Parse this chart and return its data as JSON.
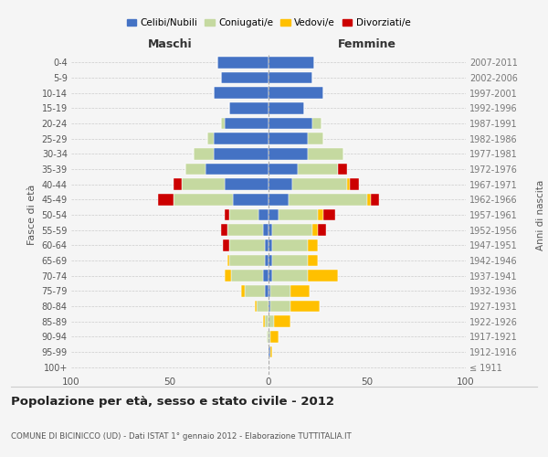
{
  "age_groups": [
    "100+",
    "95-99",
    "90-94",
    "85-89",
    "80-84",
    "75-79",
    "70-74",
    "65-69",
    "60-64",
    "55-59",
    "50-54",
    "45-49",
    "40-44",
    "35-39",
    "30-34",
    "25-29",
    "20-24",
    "15-19",
    "10-14",
    "5-9",
    "0-4"
  ],
  "birth_years": [
    "≤ 1911",
    "1912-1916",
    "1917-1921",
    "1922-1926",
    "1927-1931",
    "1932-1936",
    "1937-1941",
    "1942-1946",
    "1947-1951",
    "1952-1956",
    "1957-1961",
    "1962-1966",
    "1967-1971",
    "1972-1976",
    "1977-1981",
    "1982-1986",
    "1987-1991",
    "1992-1996",
    "1997-2001",
    "2002-2006",
    "2007-2011"
  ],
  "maschi": {
    "celibi": [
      0,
      0,
      0,
      0,
      0,
      2,
      3,
      2,
      2,
      3,
      5,
      18,
      22,
      32,
      28,
      28,
      22,
      20,
      28,
      24,
      26
    ],
    "coniugati": [
      0,
      0,
      1,
      2,
      6,
      10,
      16,
      18,
      18,
      18,
      15,
      30,
      22,
      10,
      10,
      3,
      2,
      0,
      0,
      0,
      0
    ],
    "vedovi": [
      0,
      0,
      0,
      1,
      1,
      2,
      3,
      1,
      0,
      0,
      0,
      0,
      0,
      0,
      0,
      0,
      0,
      0,
      0,
      0,
      0
    ],
    "divorziati": [
      0,
      0,
      0,
      0,
      0,
      0,
      0,
      0,
      3,
      3,
      2,
      8,
      4,
      0,
      0,
      0,
      0,
      0,
      0,
      0,
      0
    ]
  },
  "femmine": {
    "nubili": [
      0,
      1,
      0,
      0,
      1,
      1,
      2,
      2,
      2,
      2,
      5,
      10,
      12,
      15,
      20,
      20,
      22,
      18,
      28,
      22,
      23
    ],
    "coniugate": [
      0,
      0,
      1,
      3,
      10,
      10,
      18,
      18,
      18,
      20,
      20,
      40,
      28,
      20,
      18,
      8,
      5,
      0,
      0,
      0,
      0
    ],
    "vedove": [
      0,
      1,
      4,
      8,
      15,
      10,
      15,
      5,
      5,
      3,
      3,
      2,
      1,
      0,
      0,
      0,
      0,
      0,
      0,
      0,
      0
    ],
    "divorziate": [
      0,
      0,
      0,
      0,
      0,
      0,
      0,
      0,
      0,
      4,
      6,
      4,
      5,
      5,
      0,
      0,
      0,
      0,
      0,
      0,
      0
    ]
  },
  "color_celibi": "#4472c4",
  "color_coniugati": "#c5d9a0",
  "color_vedovi": "#ffc000",
  "color_divorziati": "#cc0000",
  "title": "Popolazione per età, sesso e stato civile - 2012",
  "subtitle": "COMUNE DI BICINICCO (UD) - Dati ISTAT 1° gennaio 2012 - Elaborazione TUTTITALIA.IT",
  "ylabel_left": "Fasce di età",
  "ylabel_right": "Anni di nascita",
  "xlabel_maschi": "Maschi",
  "xlabel_femmine": "Femmine",
  "xlim": 100,
  "bg_color": "#f5f5f5"
}
